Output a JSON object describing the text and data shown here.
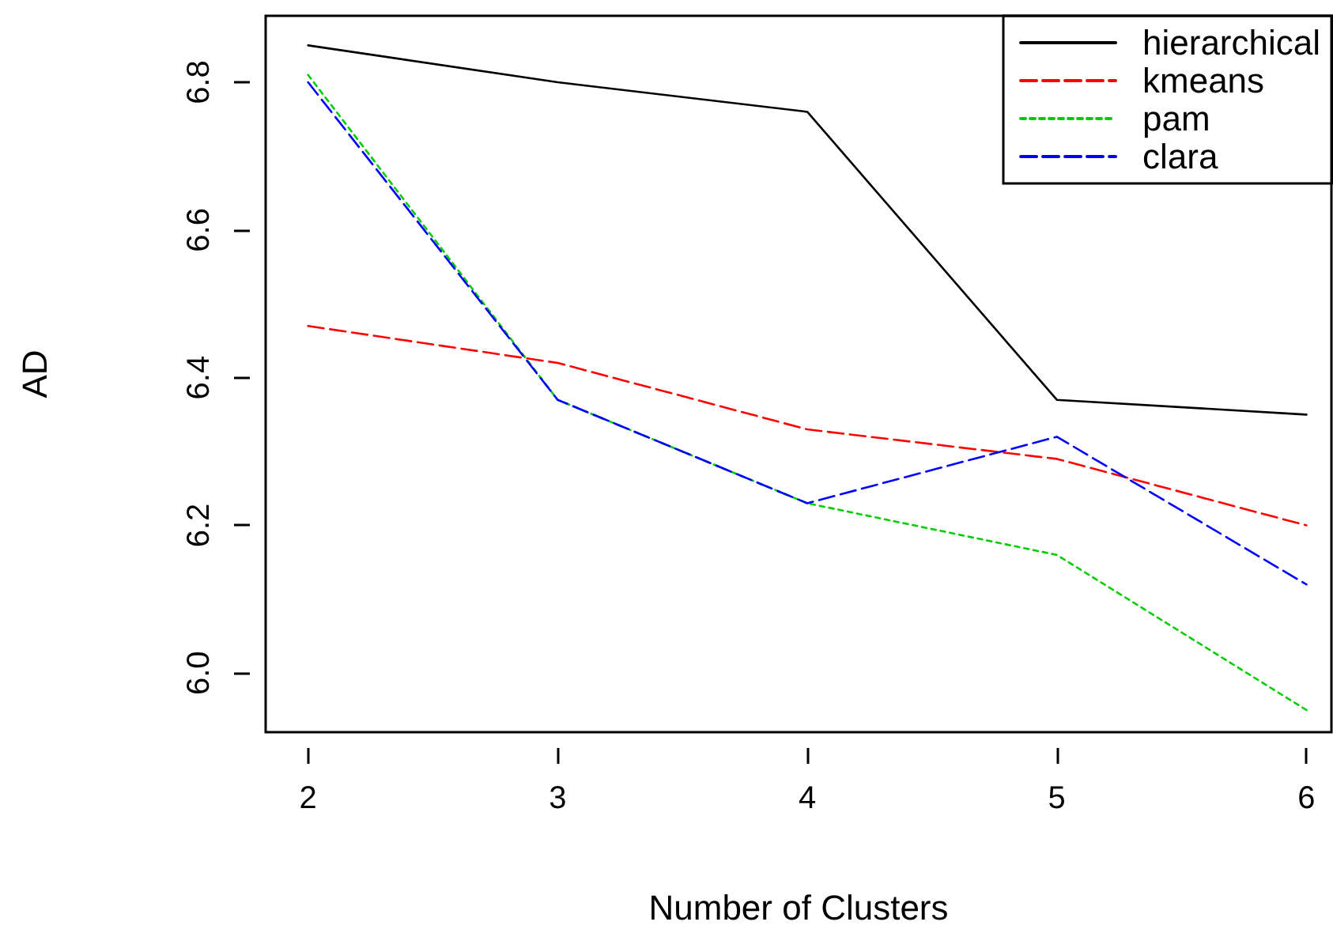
{
  "chart_data": {
    "type": "line",
    "xlabel": "Number of Clusters",
    "ylabel": "AD",
    "x": [
      2,
      3,
      4,
      5,
      6
    ],
    "series": [
      {
        "name": "hierarchical",
        "color": "#000000",
        "line_style": "solid",
        "values": [
          6.85,
          6.8,
          6.76,
          6.37,
          6.35
        ]
      },
      {
        "name": "kmeans",
        "color": "#ff0000",
        "line_style": "dashed",
        "values": [
          6.47,
          6.42,
          6.33,
          6.29,
          6.2
        ]
      },
      {
        "name": "pam",
        "color": "#00cd00",
        "line_style": "dotted",
        "values": [
          6.81,
          6.37,
          6.23,
          6.16,
          5.95
        ]
      },
      {
        "name": "clara",
        "color": "#0000ff",
        "line_style": "dashed",
        "values": [
          6.8,
          6.37,
          6.23,
          6.32,
          6.12
        ]
      }
    ],
    "xlim": [
      1.83,
      6.1
    ],
    "xticks": [
      2,
      3,
      4,
      5,
      6
    ],
    "ylim": [
      5.92,
      6.89
    ],
    "yticks": [
      {
        "value": 6,
        "label": "6.0"
      },
      {
        "value": 6.2,
        "label": "6.2"
      },
      {
        "value": 6.4,
        "label": "6.4"
      },
      {
        "value": 6.6,
        "label": "6.6"
      },
      {
        "value": 6.8,
        "label": "6.8"
      }
    ],
    "marker": "none",
    "grid": false,
    "legend": "top right"
  }
}
